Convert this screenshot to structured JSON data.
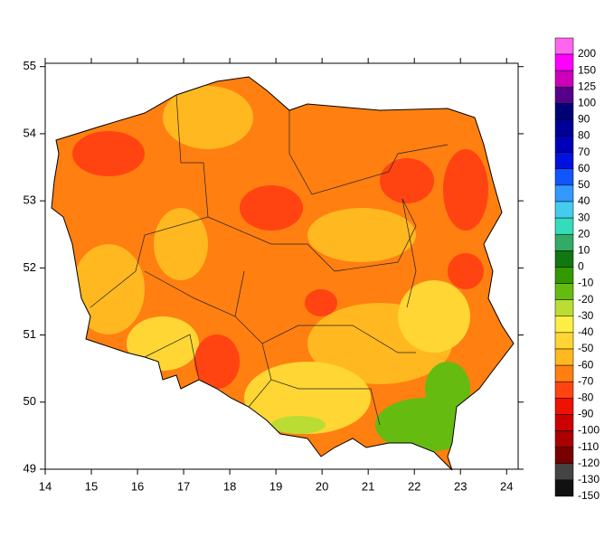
{
  "map": {
    "xlim": [
      14,
      24.25
    ],
    "ylim": [
      49,
      55.05
    ],
    "xticks": [
      14,
      15,
      16,
      17,
      18,
      19,
      20,
      21,
      22,
      23,
      24
    ],
    "yticks": [
      49,
      50,
      51,
      52,
      53,
      54,
      55
    ]
  },
  "colorbar": {
    "labels": [
      200,
      150,
      125,
      100,
      90,
      80,
      70,
      60,
      50,
      40,
      30,
      20,
      10,
      0,
      -10,
      -20,
      -30,
      -40,
      -50,
      -60,
      -70,
      -80,
      -90,
      -100,
      -110,
      -120,
      -130,
      -150
    ],
    "colors": [
      "#ff66ee",
      "#ff00ff",
      "#cc00bb",
      "#550088",
      "#000077",
      "#000099",
      "#0000bb",
      "#0011dd",
      "#1155ff",
      "#3399ff",
      "#44ccee",
      "#33ddbb",
      "#33aa66",
      "#117711",
      "#339900",
      "#66bb11",
      "#bbdd33",
      "#ffee44",
      "#ffd633",
      "#ffb81f",
      "#ff7f11",
      "#ff4411",
      "#ee1100",
      "#cc0000",
      "#aa0000",
      "#770000",
      "#444444",
      "#111111"
    ]
  }
}
